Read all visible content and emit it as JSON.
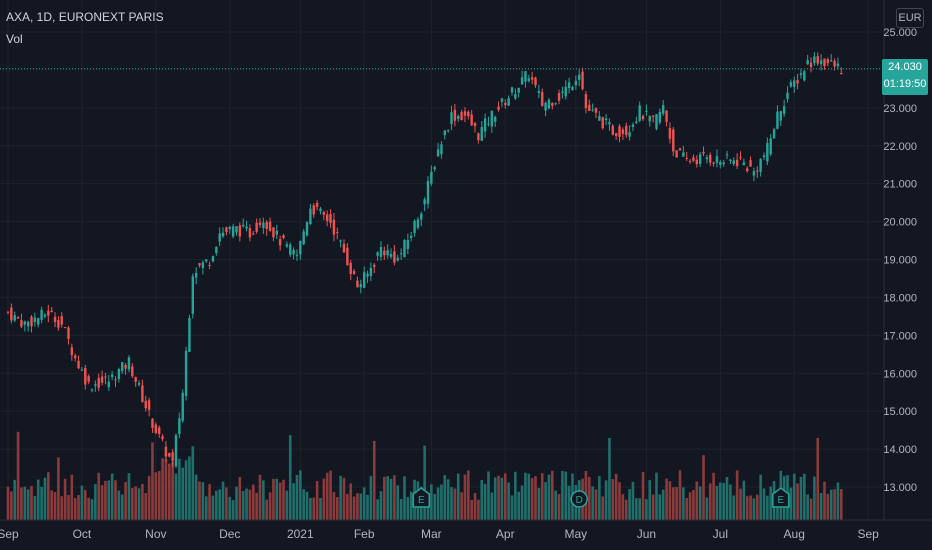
{
  "header": {
    "symbol": "AXA, 1D, EURONEXT PARIS",
    "vol_label": "Vol"
  },
  "currency": "EUR",
  "last_price": {
    "price": "24.030",
    "countdown": "01:19:50"
  },
  "colors": {
    "background": "#131722",
    "up": "#26a69a",
    "down": "#ef5350",
    "vol_up": "#1f6f6a",
    "vol_down": "#8c3b3b",
    "grid": "#1e222d",
    "axis_text": "#b2b5be",
    "price_line": "#26a69a"
  },
  "chart_data": {
    "type": "candlestick",
    "symbol": "AXA",
    "interval": "1D",
    "exchange": "EURONEXT PARIS",
    "y_ticks": [
      13,
      14,
      15,
      16,
      17,
      18,
      19,
      20,
      21,
      22,
      23,
      24,
      25
    ],
    "y_tick_labels": [
      "13.000",
      "14.000",
      "15.000",
      "16.000",
      "17.000",
      "18.000",
      "19.000",
      "20.000",
      "21.000",
      "22.000",
      "23.000",
      "24.000",
      "25.000"
    ],
    "ylim": [
      12.6,
      25.2
    ],
    "x_labels": [
      "Sep",
      "Oct",
      "Nov",
      "Dec",
      "2021",
      "Feb",
      "Mar",
      "Apr",
      "May",
      "Jun",
      "Jul",
      "Aug",
      "Sep"
    ],
    "x_label_bar_index": [
      0,
      22,
      44,
      66,
      87,
      106,
      126,
      148,
      169,
      190,
      212,
      234,
      256
    ],
    "close_path": [
      [
        0,
        17.6
      ],
      [
        5,
        17.3
      ],
      [
        12,
        17.6
      ],
      [
        16,
        17.3
      ],
      [
        20,
        16.4
      ],
      [
        24,
        15.7
      ],
      [
        30,
        15.8
      ],
      [
        36,
        16.3
      ],
      [
        42,
        14.9
      ],
      [
        46,
        14.1
      ],
      [
        49,
        13.6
      ],
      [
        52,
        15.5
      ],
      [
        55,
        18.7
      ],
      [
        60,
        19.0
      ],
      [
        63,
        19.7
      ],
      [
        68,
        19.8
      ],
      [
        72,
        19.7
      ],
      [
        76,
        20.1
      ],
      [
        80,
        19.6
      ],
      [
        83,
        19.3
      ],
      [
        86,
        19.1
      ],
      [
        90,
        20.4
      ],
      [
        96,
        20.0
      ],
      [
        100,
        19.2
      ],
      [
        104,
        18.3
      ],
      [
        107,
        18.6
      ],
      [
        111,
        19.3
      ],
      [
        116,
        19.0
      ],
      [
        120,
        19.7
      ],
      [
        124,
        20.6
      ],
      [
        128,
        21.9
      ],
      [
        132,
        22.8
      ],
      [
        136,
        22.8
      ],
      [
        140,
        22.3
      ],
      [
        144,
        22.8
      ],
      [
        150,
        23.4
      ],
      [
        155,
        23.9
      ],
      [
        159,
        23.1
      ],
      [
        164,
        23.3
      ],
      [
        168,
        23.7
      ],
      [
        170,
        24.0
      ],
      [
        172,
        23.0
      ],
      [
        176,
        22.7
      ],
      [
        180,
        22.4
      ],
      [
        184,
        22.4
      ],
      [
        188,
        22.9
      ],
      [
        192,
        22.6
      ],
      [
        195,
        23.0
      ],
      [
        198,
        21.9
      ],
      [
        202,
        21.6
      ],
      [
        208,
        21.7
      ],
      [
        212,
        21.6
      ],
      [
        218,
        21.6
      ],
      [
        222,
        21.3
      ],
      [
        226,
        21.9
      ],
      [
        229,
        22.8
      ],
      [
        232,
        23.4
      ],
      [
        236,
        23.9
      ],
      [
        238,
        24.2
      ],
      [
        241,
        24.3
      ],
      [
        246,
        24.1
      ],
      [
        248,
        24.03
      ]
    ],
    "volume_note": "relative daily volume bars with earnings (E) and dividend (D) markers",
    "events": [
      {
        "label": "E",
        "bar_index": 123
      },
      {
        "label": "D",
        "bar_index": 170
      },
      {
        "label": "E",
        "bar_index": 230
      }
    ],
    "last_price": 24.03
  }
}
